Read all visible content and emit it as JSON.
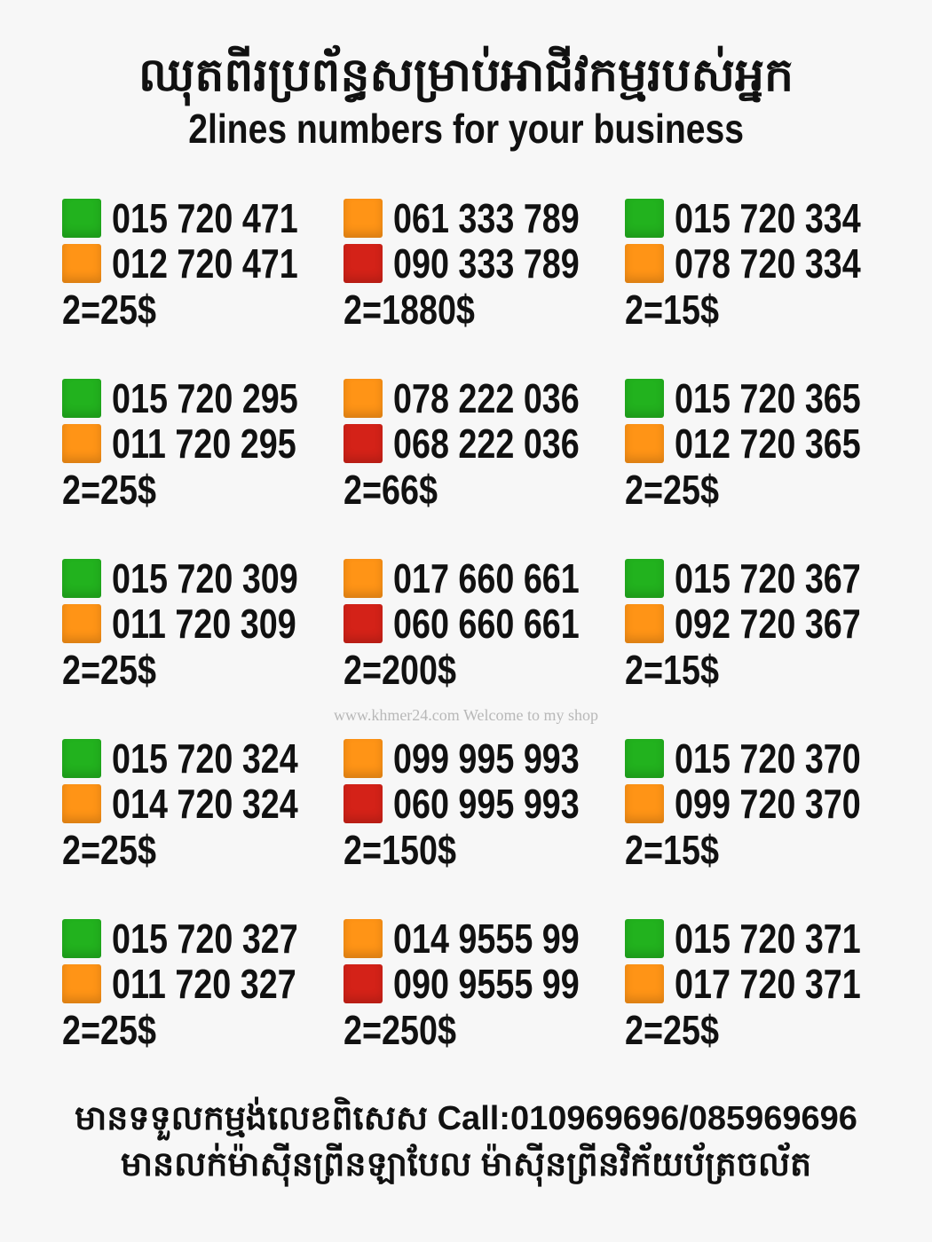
{
  "header": {
    "title_khmer": "ឈុតពីរប្រព័ន្ធសម្រាប់អាជីវកម្មរបស់អ្នក",
    "title_english": "2lines numbers for your business"
  },
  "colors": {
    "green": "#22b21e",
    "orange": "#ff9416",
    "red": "#d42218"
  },
  "sets": [
    {
      "lines": [
        {
          "color": "green",
          "number": "015 720 471"
        },
        {
          "color": "orange",
          "number": "012 720 471"
        }
      ],
      "price": "2=25$"
    },
    {
      "lines": [
        {
          "color": "orange",
          "number": "061 333 789"
        },
        {
          "color": "red",
          "number": "090 333 789"
        }
      ],
      "price": "2=1880$"
    },
    {
      "lines": [
        {
          "color": "green",
          "number": "015 720 334"
        },
        {
          "color": "orange",
          "number": "078 720 334"
        }
      ],
      "price": "2=15$"
    },
    {
      "lines": [
        {
          "color": "green",
          "number": "015 720 295"
        },
        {
          "color": "orange",
          "number": "011 720 295"
        }
      ],
      "price": "2=25$"
    },
    {
      "lines": [
        {
          "color": "orange",
          "number": "078 222 036"
        },
        {
          "color": "red",
          "number": "068 222 036"
        }
      ],
      "price": "2=66$"
    },
    {
      "lines": [
        {
          "color": "green",
          "number": "015 720 365"
        },
        {
          "color": "orange",
          "number": "012 720 365"
        }
      ],
      "price": "2=25$"
    },
    {
      "lines": [
        {
          "color": "green",
          "number": "015 720 309"
        },
        {
          "color": "orange",
          "number": "011 720 309"
        }
      ],
      "price": "2=25$"
    },
    {
      "lines": [
        {
          "color": "orange",
          "number": "017 660 661"
        },
        {
          "color": "red",
          "number": "060 660 661"
        }
      ],
      "price": "2=200$"
    },
    {
      "lines": [
        {
          "color": "green",
          "number": "015 720 367"
        },
        {
          "color": "orange",
          "number": "092 720 367"
        }
      ],
      "price": "2=15$"
    },
    {
      "lines": [
        {
          "color": "green",
          "number": "015 720 324"
        },
        {
          "color": "orange",
          "number": "014 720 324"
        }
      ],
      "price": "2=25$"
    },
    {
      "lines": [
        {
          "color": "orange",
          "number": "099 995 993"
        },
        {
          "color": "red",
          "number": "060 995 993"
        }
      ],
      "price": "2=150$"
    },
    {
      "lines": [
        {
          "color": "green",
          "number": "015 720 370"
        },
        {
          "color": "orange",
          "number": "099 720 370"
        }
      ],
      "price": "2=15$"
    },
    {
      "lines": [
        {
          "color": "green",
          "number": "015 720 327"
        },
        {
          "color": "orange",
          "number": "011 720 327"
        }
      ],
      "price": "2=25$"
    },
    {
      "lines": [
        {
          "color": "orange",
          "number": "014 9555 99"
        },
        {
          "color": "red",
          "number": "090 9555 99"
        }
      ],
      "price": "2=250$"
    },
    {
      "lines": [
        {
          "color": "green",
          "number": "015 720 371"
        },
        {
          "color": "orange",
          "number": "017 720 371"
        }
      ],
      "price": "2=25$"
    }
  ],
  "watermark": "www.khmer24.com Welcome to my shop",
  "footer": {
    "line1": "មានទទួលកម្មង់លេខពិសេស Call:010969696/085969696",
    "line2": "មានលក់ម៉ាស៊ីនព្រីនឡាបែល ម៉ាស៊ីនព្រីនវិក័យប័ត្រចល័ត"
  }
}
